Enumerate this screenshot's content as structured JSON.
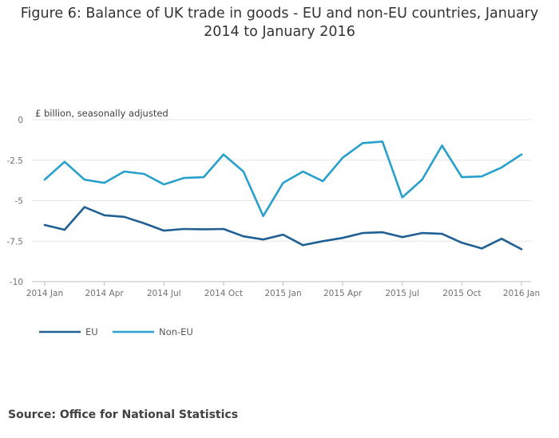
{
  "chart_data": {
    "type": "line",
    "title": "Figure 6: Balance of UK trade in goods - EU and non-EU countries, January 2014 to January 2016",
    "ylabel": "£ billion, seasonally adjusted",
    "xlabel": "",
    "ylim": [
      -10,
      0
    ],
    "yticks": [
      0,
      -2.5,
      -5,
      -7.5,
      -10
    ],
    "ytick_labels": [
      "0",
      "-2.5",
      "-5",
      "-7.5",
      "-10"
    ],
    "xtick_labels": [
      "2014 Jan",
      "2014 Apr",
      "2014 Jul",
      "2014 Oct",
      "2015 Jan",
      "2015 Apr",
      "2015 Jul",
      "2015 Oct",
      "2016 Jan"
    ],
    "x": [
      "2014 Jan",
      "2014 Feb",
      "2014 Mar",
      "2014 Apr",
      "2014 May",
      "2014 Jun",
      "2014 Jul",
      "2014 Aug",
      "2014 Sep",
      "2014 Oct",
      "2014 Nov",
      "2014 Dec",
      "2015 Jan",
      "2015 Feb",
      "2015 Mar",
      "2015 Apr",
      "2015 May",
      "2015 Jun",
      "2015 Jul",
      "2015 Aug",
      "2015 Sep",
      "2015 Oct",
      "2015 Nov",
      "2015 Dec",
      "2016 Jan"
    ],
    "series": [
      {
        "name": "EU",
        "color": "#206095",
        "values": [
          -6.5,
          -6.8,
          -5.4,
          -5.9,
          -6.0,
          -6.4,
          -6.85,
          -6.75,
          -6.77,
          -6.75,
          -7.2,
          -7.4,
          -7.1,
          -7.75,
          -7.5,
          -7.3,
          -7.0,
          -6.95,
          -7.25,
          -7.0,
          -7.05,
          -7.6,
          -7.95,
          -7.35,
          -8.0
        ]
      },
      {
        "name": "Non-EU",
        "color": "#27A0CC",
        "values": [
          -3.7,
          -2.6,
          -3.7,
          -3.9,
          -3.2,
          -3.35,
          -4.0,
          -3.6,
          -3.55,
          -2.15,
          -3.2,
          -5.95,
          -3.9,
          -3.2,
          -3.8,
          -2.35,
          -1.45,
          -1.35,
          -4.8,
          -3.7,
          -1.6,
          -3.55,
          -3.5,
          -2.95,
          -2.15
        ]
      }
    ],
    "legend": "bottom-left",
    "grid": true
  },
  "source": "Source: Office for National Statistics"
}
